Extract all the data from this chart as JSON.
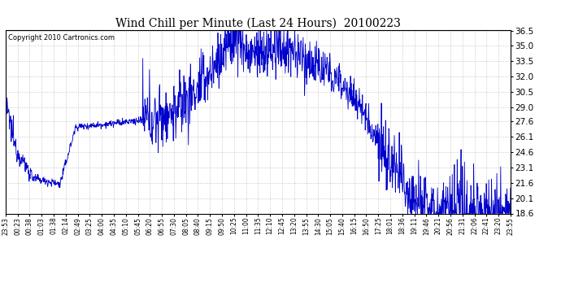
{
  "title": "Wind Chill per Minute (Last 24 Hours)  20100223",
  "copyright_text": "Copyright 2010 Cartronics.com",
  "line_color": "#0000cc",
  "background_color": "#ffffff",
  "plot_bg_color": "#ffffff",
  "grid_color": "#bbbbbb",
  "ylim": [
    18.6,
    36.5
  ],
  "yticks": [
    18.6,
    20.1,
    21.6,
    23.1,
    24.6,
    26.1,
    27.6,
    29.0,
    30.5,
    32.0,
    33.5,
    35.0,
    36.5
  ],
  "xlabel_fontsize": 5.5,
  "ylabel_fontsize": 7.5,
  "title_fontsize": 10,
  "line_width": 0.6,
  "time_labels": [
    "23:53",
    "00:23",
    "00:38",
    "01:03",
    "01:38",
    "02:14",
    "02:49",
    "03:25",
    "04:00",
    "04:35",
    "05:10",
    "05:45",
    "06:20",
    "06:55",
    "07:30",
    "08:05",
    "08:40",
    "09:15",
    "09:50",
    "10:25",
    "11:00",
    "11:35",
    "12:10",
    "12:45",
    "13:20",
    "13:55",
    "14:30",
    "15:05",
    "15:40",
    "16:15",
    "16:50",
    "17:25",
    "18:01",
    "18:36",
    "19:11",
    "19:46",
    "20:21",
    "20:56",
    "21:31",
    "22:06",
    "22:41",
    "23:20",
    "23:55"
  ]
}
